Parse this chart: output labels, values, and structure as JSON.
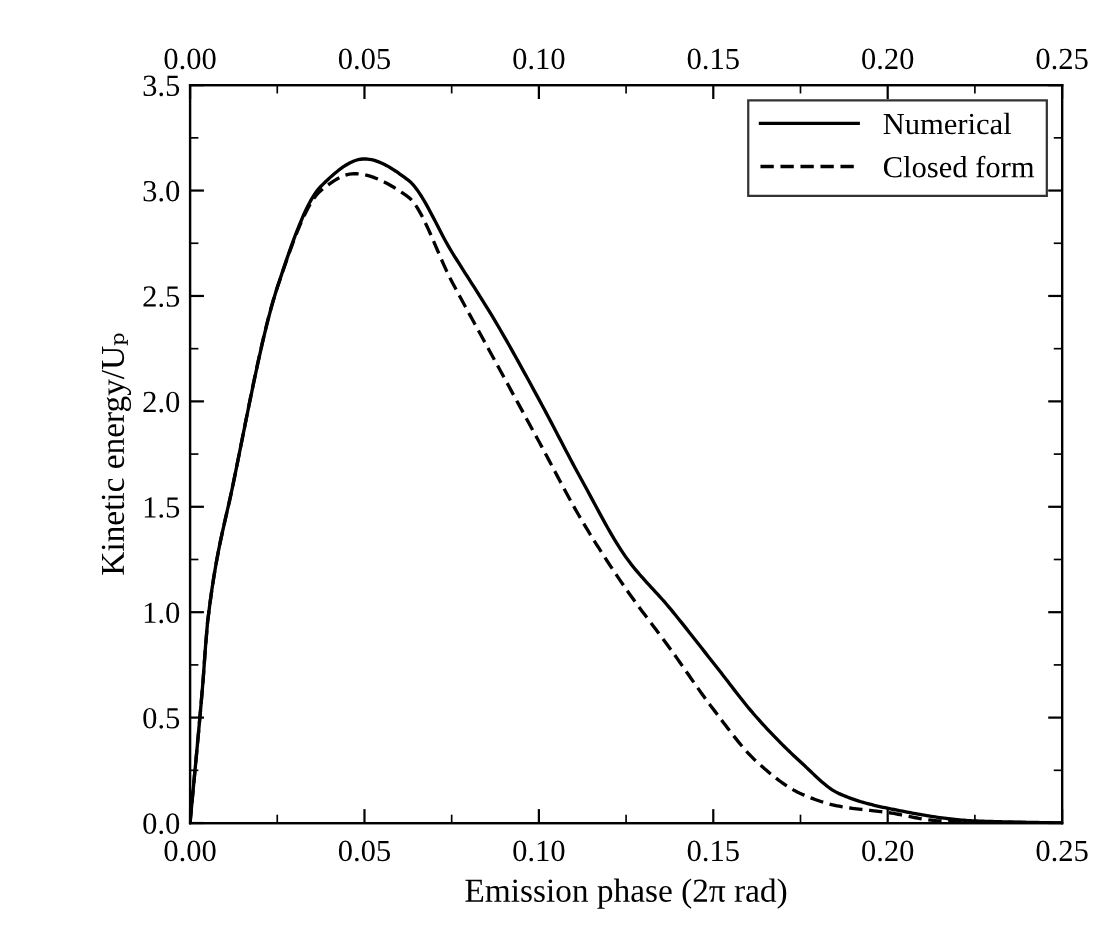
{
  "chart_data": {
    "type": "line",
    "xlabel": "Emission phase (2π rad)",
    "ylabel": "Kinetic energy/Uₚ",
    "xlim": [
      0,
      0.25
    ],
    "xticks": [
      {
        "value": 0,
        "label": "0.00"
      },
      {
        "value": 0.05,
        "label": "0.05"
      },
      {
        "value": 0.1,
        "label": "0.10"
      },
      {
        "value": 0.15,
        "label": "0.15"
      },
      {
        "value": 0.2,
        "label": "0.20"
      },
      {
        "value": 0.25,
        "label": "0.25"
      }
    ],
    "x2lim": [
      0,
      0.25
    ],
    "x2ticks": [
      {
        "value": 0,
        "label": "0.00"
      },
      {
        "value": 0.05,
        "label": "0.05"
      },
      {
        "value": 0.1,
        "label": "0.10"
      },
      {
        "value": 0.15,
        "label": "0.15"
      },
      {
        "value": 0.2,
        "label": "0.20"
      },
      {
        "value": 0.25,
        "label": "0.25"
      }
    ],
    "ylim": [
      0,
      3.5
    ],
    "yticks": [
      {
        "value": 0,
        "label": "0.0"
      },
      {
        "value": 0.5,
        "label": "0.5"
      },
      {
        "value": 1,
        "label": "1.0"
      },
      {
        "value": 1.5,
        "label": "1.5"
      },
      {
        "value": 2,
        "label": "2.0"
      },
      {
        "value": 2.5,
        "label": "2.5"
      },
      {
        "value": 3,
        "label": "3.0"
      },
      {
        "value": 3.5,
        "label": "3.5"
      }
    ],
    "grid": false,
    "legend": "top right",
    "marker": "none",
    "series": [
      {
        "name": "Numerical",
        "color": "#000000",
        "line_style": "solid",
        "x": [
          0,
          0.0037,
          0.005,
          0.0125,
          0.025,
          0.0375,
          0.05,
          0.0625,
          0.075,
          0.0875,
          0.1,
          0.1125,
          0.125,
          0.1375,
          0.15,
          0.1625,
          0.175,
          0.186,
          0.2,
          0.225,
          0.25
        ],
        "values": [
          0,
          0.67,
          0.95,
          1.62,
          2.54,
          3.02,
          3.15,
          3.05,
          2.71,
          2.38,
          2.01,
          1.62,
          1.26,
          1.02,
          0.76,
          0.5,
          0.29,
          0.14,
          0.07,
          0.01,
          0
        ]
      },
      {
        "name": "Closed form",
        "color": "#000000",
        "line_style": "dashed",
        "x": [
          0,
          0.0037,
          0.005,
          0.0125,
          0.025,
          0.0375,
          0.047,
          0.0625,
          0.075,
          0.0875,
          0.1,
          0.1125,
          0.125,
          0.1375,
          0.15,
          0.1625,
          0.175,
          0.186,
          0.2,
          0.215,
          0.25
        ],
        "values": [
          0,
          0.67,
          0.95,
          1.62,
          2.54,
          3.0,
          3.08,
          2.97,
          2.57,
          2.19,
          1.81,
          1.43,
          1.11,
          0.83,
          0.54,
          0.29,
          0.14,
          0.08,
          0.05,
          0.01,
          0
        ]
      }
    ]
  }
}
